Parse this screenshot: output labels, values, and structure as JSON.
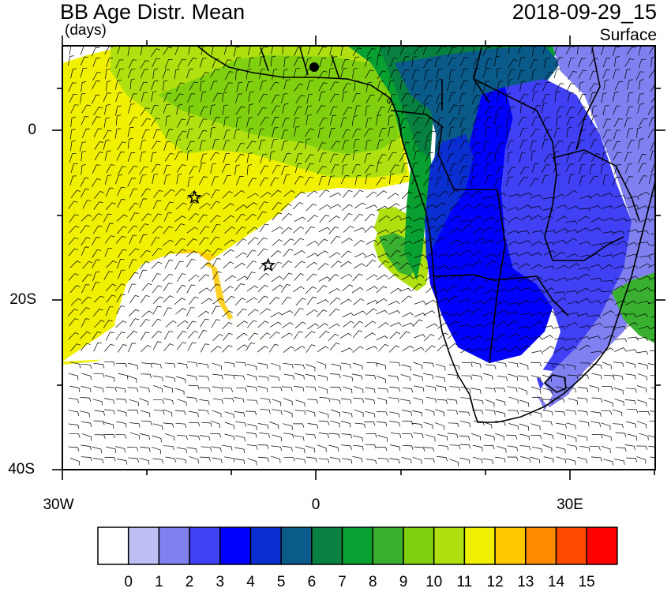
{
  "header": {
    "title": "BB Age Distr. Mean",
    "units": "(days)",
    "date": "2018-09-29_15",
    "level": "Surface"
  },
  "axes": {
    "lat_labels": [
      "0",
      "20S",
      "40S"
    ],
    "lon_labels": [
      "30W",
      "0",
      "30E"
    ]
  },
  "colorbar": {
    "labels": [
      "0",
      "1",
      "2",
      "3",
      "4",
      "5",
      "6",
      "7",
      "8",
      "9",
      "10",
      "11",
      "12",
      "13",
      "14",
      "15"
    ],
    "colors": [
      "#ffffff",
      "#bfbff5",
      "#8080f0",
      "#4040f5",
      "#0000ff",
      "#0a2fd0",
      "#0a5a8a",
      "#078040",
      "#08a030",
      "#3ab030",
      "#80d010",
      "#b0e010",
      "#f0f000",
      "#ffc800",
      "#ff8c00",
      "#ff4a00",
      "#ff0000"
    ]
  },
  "map": {
    "projection": "cylindrical equidistant",
    "region": "South Atlantic / Southern Africa",
    "lon_range": [
      -30,
      40
    ],
    "lat_range": [
      -40,
      10
    ],
    "markers": [
      {
        "name": "star",
        "lon": -14.4,
        "lat": -7.9
      },
      {
        "name": "star",
        "lon": -5.7,
        "lat": -15.9
      }
    ],
    "overlay": "surface wind barbs"
  }
}
